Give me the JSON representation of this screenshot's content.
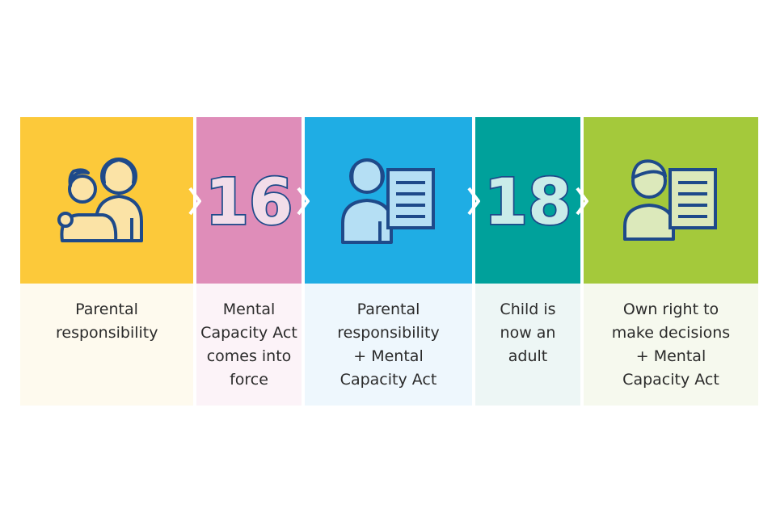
{
  "colors": {
    "navy": "#1e4a8a",
    "yellow": "#fcc93a",
    "pink": "#df8db9",
    "blue": "#1fade4",
    "teal": "#00a19b",
    "green": "#a4c93b"
  },
  "steps": [
    {
      "label": "Parental responsibility",
      "icon": "parent-and-child-icon"
    },
    {
      "label": "Mental Capacity Act comes into force",
      "age": "16"
    },
    {
      "label": "Parental responsibility + Mental Capacity Act",
      "icon": "person-with-document-icon"
    },
    {
      "label": "Child is now an adult",
      "age": "18"
    },
    {
      "label": "Own right to make decisions + Mental Capacity Act",
      "icon": "young-person-with-document-icon"
    }
  ]
}
